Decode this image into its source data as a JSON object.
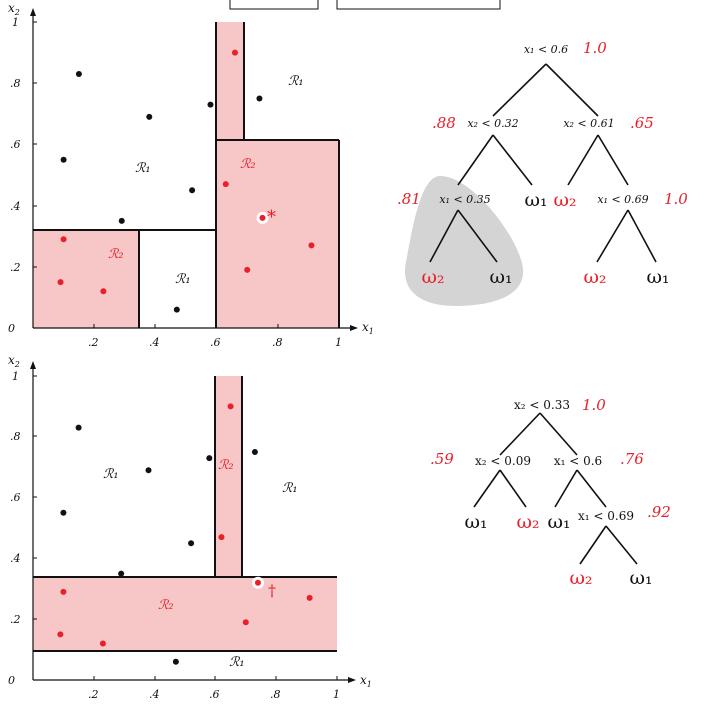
{
  "colors": {
    "region_fill": "#f7c6c6",
    "red": "#e8202a",
    "black": "#111111",
    "prune_gray": "#d4d4d4"
  },
  "top_plot": {
    "x_axis": {
      "label": "x",
      "sub": "1",
      "ticks": [
        "0",
        ".2",
        ".4",
        ".6",
        ".8",
        "1"
      ]
    },
    "y_axis": {
      "label": "x",
      "sub": "2",
      "ticks": [
        ".2",
        ".4",
        ".6",
        ".8",
        "1"
      ]
    },
    "region_labels": [
      "ℛ₁",
      "ℛ₁",
      "ℛ₂",
      "ℛ₂",
      "ℛ₁"
    ],
    "marker": "*",
    "points": {
      "black": [
        [
          0.15,
          0.83
        ],
        [
          0.38,
          0.69
        ],
        [
          0.58,
          0.73
        ],
        [
          0.74,
          0.75
        ],
        [
          0.1,
          0.55
        ],
        [
          0.52,
          0.45
        ],
        [
          0.29,
          0.35
        ],
        [
          0.47,
          0.06
        ]
      ],
      "red": [
        [
          0.66,
          0.9
        ],
        [
          0.63,
          0.47
        ],
        [
          0.1,
          0.29
        ],
        [
          0.09,
          0.15
        ],
        [
          0.23,
          0.12
        ],
        [
          0.7,
          0.19
        ],
        [
          0.91,
          0.27
        ]
      ],
      "highlight": [
        0.75,
        0.36
      ]
    }
  },
  "bottom_plot": {
    "x_axis": {
      "label": "x",
      "sub": "1",
      "ticks": [
        "0",
        ".2",
        ".4",
        ".6",
        ".8",
        "1"
      ]
    },
    "y_axis": {
      "label": "x",
      "sub": "2",
      "ticks": [
        ".2",
        ".4",
        ".6",
        ".8",
        "1"
      ]
    },
    "region_labels": [
      "ℛ₁",
      "ℛ₂",
      "ℛ₁",
      "ℛ₂",
      "ℛ₁"
    ],
    "marker": "†",
    "points": {
      "black": [
        [
          0.15,
          0.83
        ],
        [
          0.38,
          0.69
        ],
        [
          0.58,
          0.73
        ],
        [
          0.73,
          0.75
        ],
        [
          0.1,
          0.55
        ],
        [
          0.52,
          0.45
        ],
        [
          0.29,
          0.35
        ],
        [
          0.47,
          0.06
        ]
      ],
      "red": [
        [
          0.65,
          0.9
        ],
        [
          0.62,
          0.47
        ],
        [
          0.1,
          0.29
        ],
        [
          0.09,
          0.15
        ],
        [
          0.23,
          0.12
        ],
        [
          0.7,
          0.19
        ],
        [
          0.91,
          0.27
        ]
      ],
      "highlight": [
        0.74,
        0.32
      ]
    }
  },
  "top_tree": {
    "root_test": "x₁ < 0.6",
    "root_value": "1.0",
    "left_test": "x₂ < 0.32",
    "left_value": ".88",
    "right_test": "x₂ < 0.61",
    "right_value": ".65",
    "ll_test": "x₁ < 0.35",
    "ll_value": ".81",
    "rr_test": "x₁ < 0.69",
    "rr_value": "1.0",
    "leaf_w1": "ω₁",
    "leaf_w2": "ω₂"
  },
  "bottom_tree": {
    "root_test": "x₂ < 0.33",
    "root_value": "1.0",
    "left_test": "x₂ < 0.09",
    "left_value": ".59",
    "right_test": "x₁ < 0.6",
    "right_value": ".76",
    "rr_test": "x₁ < 0.69",
    "rr_value": ".92",
    "leaf_w1": "ω₁",
    "leaf_w2": "ω₂"
  }
}
